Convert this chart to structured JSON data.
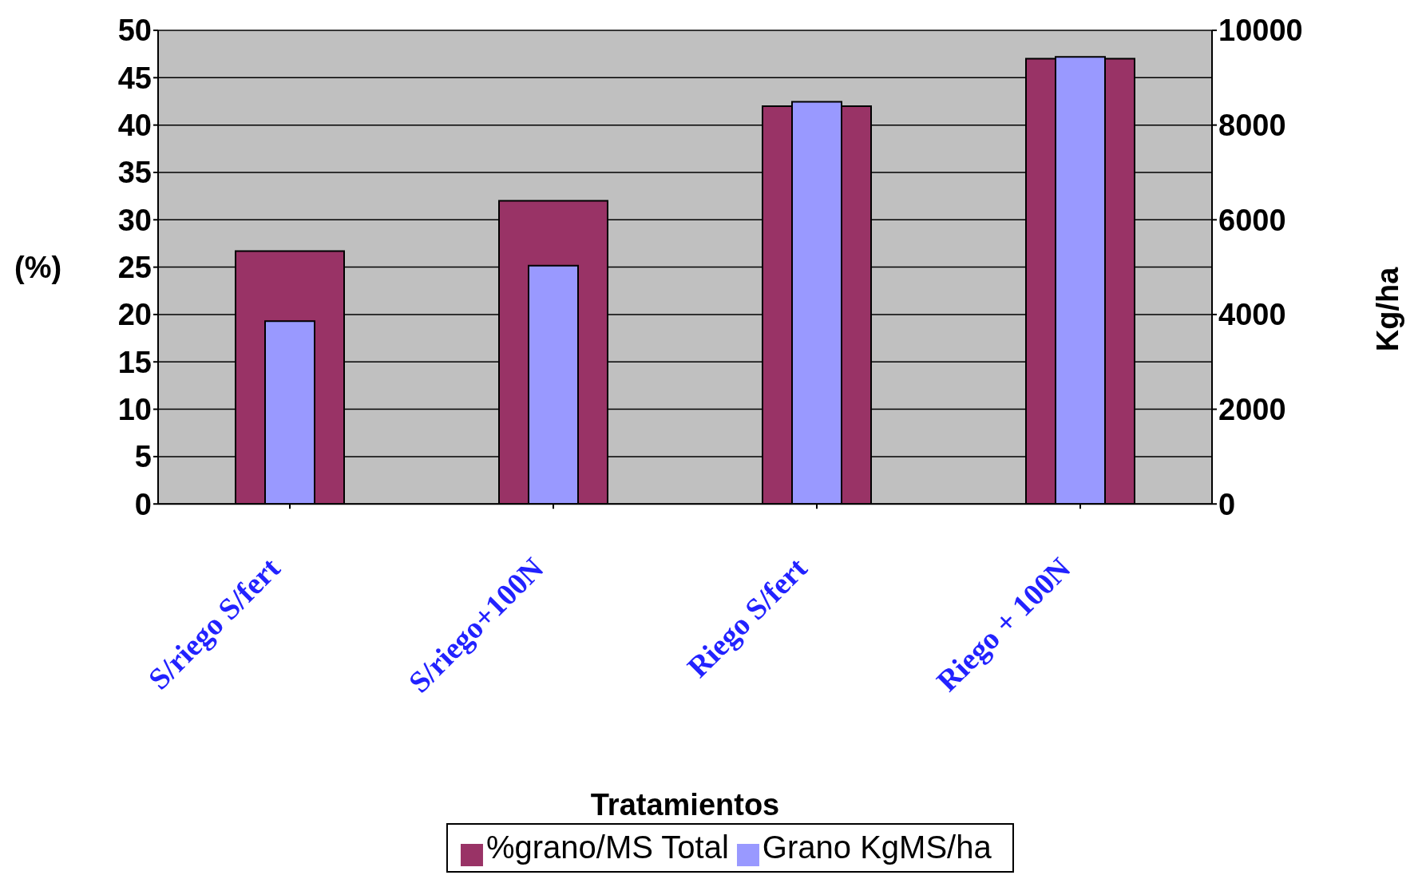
{
  "chart_data": {
    "type": "bar",
    "xlabel": "Tratamientos",
    "ylabel": "(%)",
    "y2label": "Kg/ha",
    "categories": [
      "S/riego S/fert",
      "S/riego+100N",
      "Riego S/fert",
      "Riego + 100N"
    ],
    "series": [
      {
        "name": "%grano/MS Total",
        "color": "#993366",
        "values": [
          26.7,
          32,
          42,
          47
        ]
      },
      {
        "name": "Grano KgMS/ha",
        "color": "#9999ff",
        "values": [
          3860,
          5030,
          8490,
          9440
        ],
        "axis": "y2"
      }
    ],
    "ylim": [
      0,
      50
    ],
    "yticks": [
      0,
      5,
      10,
      15,
      20,
      25,
      30,
      35,
      40,
      45,
      50
    ],
    "y2lim": [
      0,
      10000
    ],
    "y2ticks": [
      0,
      2000,
      4000,
      6000,
      8000,
      10000
    ],
    "grid": "y",
    "legend": "bottom"
  }
}
